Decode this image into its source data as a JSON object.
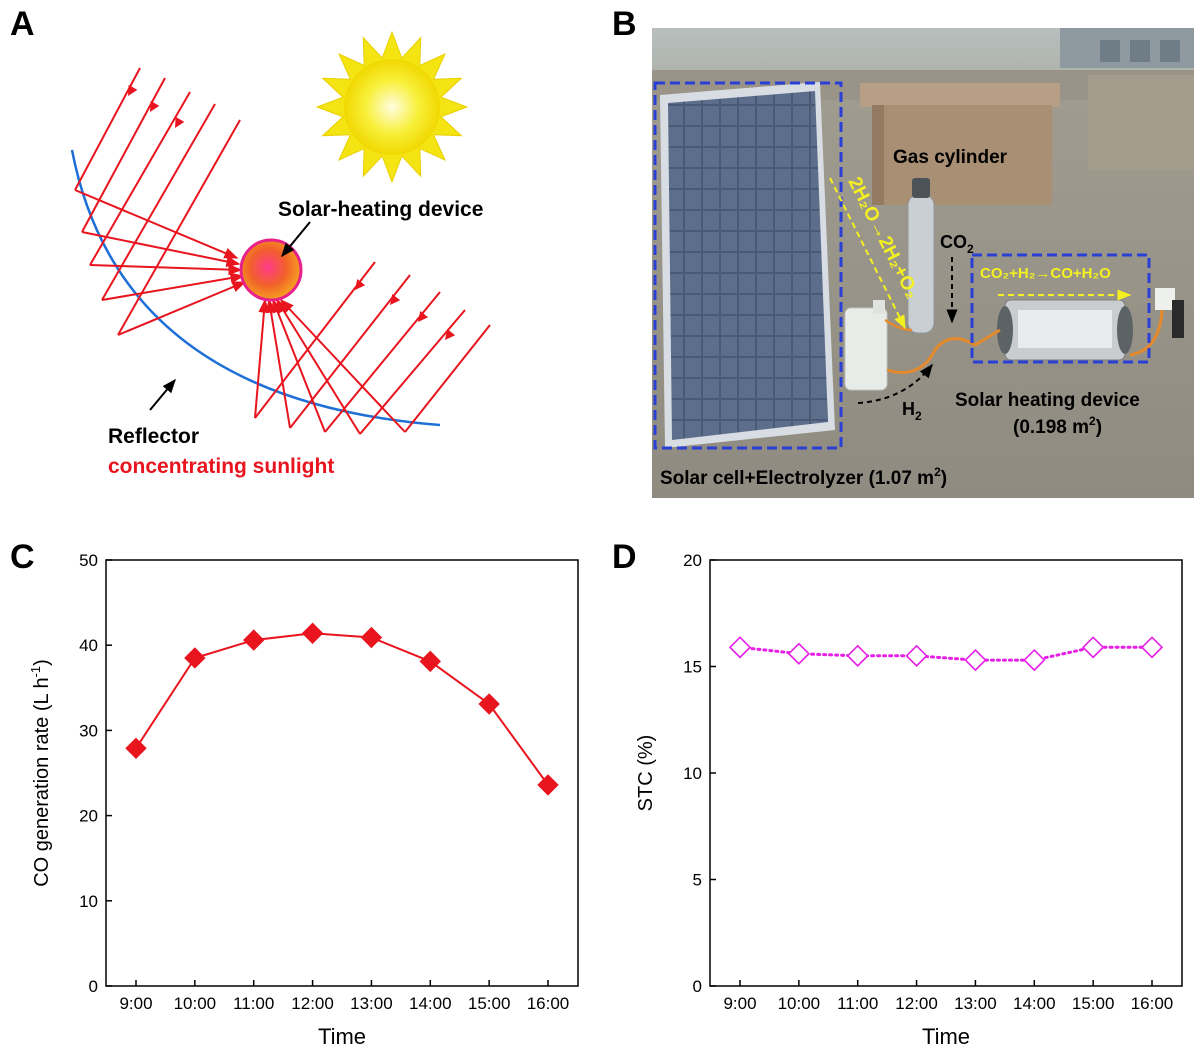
{
  "panels": {
    "a": {
      "letter": "A",
      "device_label": "Solar-heating device",
      "reflector_label": "Reflector",
      "sunlight_label": "concentrating sunlight",
      "colors": {
        "ray": "#e8141e",
        "mirror": "#1e6fd6",
        "sun": "#f7e81a",
        "device": "#f26a21"
      }
    },
    "b": {
      "letter": "B",
      "gas_cylinder": "Gas cylinder",
      "co2": "CO",
      "co2_sub": "2",
      "h2": "H",
      "h2_sub": "2",
      "reaction_electrolysis": "2H₂O→2H₂+O₂",
      "reaction_rwgs": "CO₂+H₂→CO+H₂O",
      "heating_device": "Solar heating device",
      "heating_area_prefix": "(0.198 m",
      "heating_area_sup": "2",
      "heating_area_suffix": ")",
      "cell_label_prefix": "Solar cell+Electrolyzer (1.07 m",
      "cell_label_sup": "2",
      "cell_label_suffix": ")",
      "colors": {
        "box": "#2a3fd6",
        "reaction": "#f5f020"
      }
    }
  },
  "chart_data": [
    {
      "id": "C",
      "letter": "C",
      "type": "line",
      "marker": "filled-diamond",
      "color": "#e8141e",
      "line_style": "solid",
      "categories": [
        "9:00",
        "10:00",
        "11:00",
        "12:00",
        "13:00",
        "14:00",
        "15:00",
        "16:00"
      ],
      "values": [
        27.9,
        38.5,
        40.6,
        41.4,
        40.9,
        38.1,
        33.1,
        23.6
      ],
      "xlabel": "Time",
      "ylabel": "CO generation rate (L h",
      "ylabel_sup": "-1",
      "ylabel_suffix": ")",
      "ylim": [
        0,
        50
      ],
      "yticks": [
        "0",
        "10",
        "20",
        "30",
        "40",
        "50"
      ]
    },
    {
      "id": "D",
      "letter": "D",
      "type": "line",
      "marker": "open-diamond",
      "color": "#e61ee6",
      "line_style": "dotted",
      "categories": [
        "9:00",
        "10:00",
        "11:00",
        "12:00",
        "13:00",
        "14:00",
        "15:00",
        "16:00"
      ],
      "values": [
        15.9,
        15.6,
        15.5,
        15.5,
        15.3,
        15.3,
        15.9,
        15.9
      ],
      "xlabel": "Time",
      "ylabel": "STC  (%)",
      "ylim": [
        0,
        20
      ],
      "yticks": [
        "0",
        "5",
        "10",
        "15",
        "20"
      ]
    }
  ]
}
